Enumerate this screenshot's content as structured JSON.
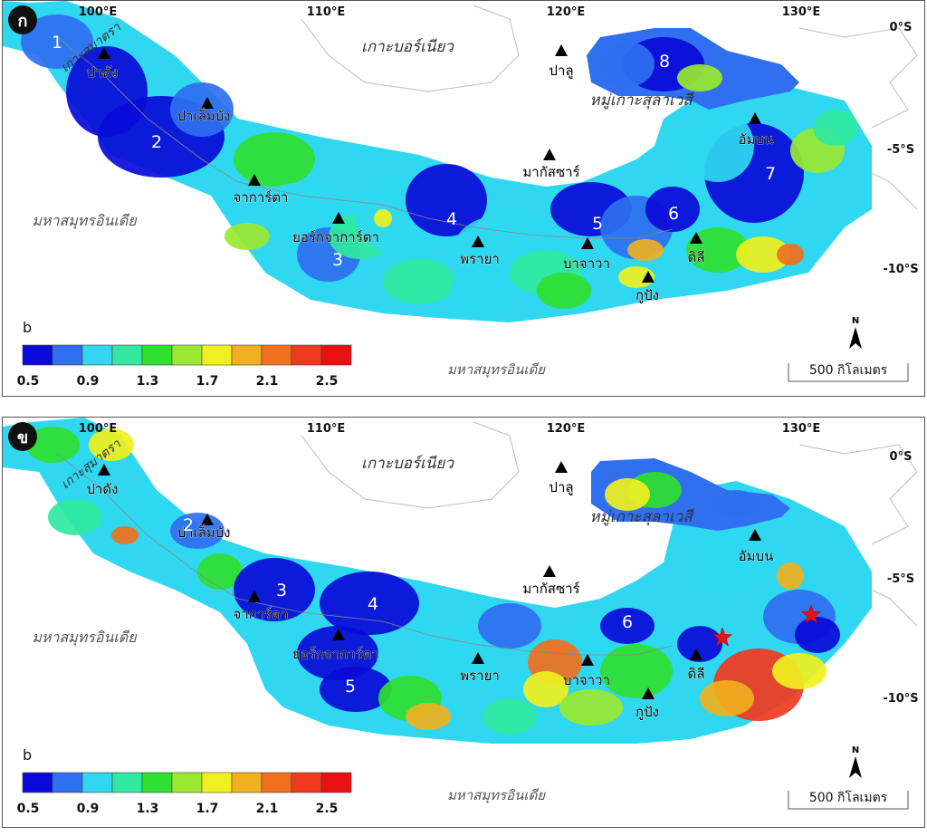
{
  "panels": [
    {
      "letter": "ก",
      "lon_labels": [
        "100°E",
        "110°E",
        "120°E",
        "130°E"
      ],
      "lat_labels": [
        "0°S",
        "-5°S",
        "-10°S"
      ],
      "region_labels": [
        "เกาะสุมาตรา",
        "เกาะบอร์เนียว",
        "หมู่เกาะสุลาเวสี",
        "มหาสมุทรอินเดีย",
        "มหาสมุทรอินเดีย"
      ],
      "stations": [
        "ปาดัง",
        "ปาเล็มบัง",
        "จาการ์ตา",
        "ยอร์กจาการ์ตา",
        "พรายา",
        "บาจาวา",
        "ดิลี",
        "กูปัง",
        "มากัสซาร์",
        "ปาลู",
        "อัมบน"
      ],
      "zones": [
        "1",
        "2",
        "3",
        "4",
        "5",
        "6",
        "7",
        "8"
      ]
    },
    {
      "letter": "ข",
      "lon_labels": [
        "100°E",
        "110°E",
        "120°E",
        "130°E"
      ],
      "lat_labels": [
        "0°S",
        "-5°S",
        "-10°S"
      ],
      "region_labels": [
        "เกาะสุมาตรา",
        "เกาะบอร์เนียว",
        "หมู่เกาะสุลาเวสี",
        "มหาสมุทรอินเดีย",
        "มหาสมุทรอินเดีย"
      ],
      "stations": [
        "ปาดัง",
        "ปาเล็มบัง",
        "จาการ์ตา",
        "ยอร์กจาการ์ตา",
        "พรายา",
        "บาจาวา",
        "ดิลี",
        "กูปัง",
        "มากัสซาร์",
        "ปาลู",
        "อัมบน"
      ],
      "zones": [
        "2",
        "3",
        "4",
        "5",
        "6"
      ]
    }
  ],
  "legend": {
    "title": "b",
    "ticks": [
      "0.5",
      "0.9",
      "1.3",
      "1.7",
      "2.1",
      "2.5"
    ],
    "colors": [
      "#0a0ad8",
      "#2f6ff0",
      "#2fd8f0",
      "#30e8a0",
      "#30e030",
      "#9ae830",
      "#f0f020",
      "#f0b020",
      "#f07020",
      "#f03a20",
      "#e81010"
    ]
  },
  "scale_bar": "500 กิโลเมตร",
  "north": "N"
}
